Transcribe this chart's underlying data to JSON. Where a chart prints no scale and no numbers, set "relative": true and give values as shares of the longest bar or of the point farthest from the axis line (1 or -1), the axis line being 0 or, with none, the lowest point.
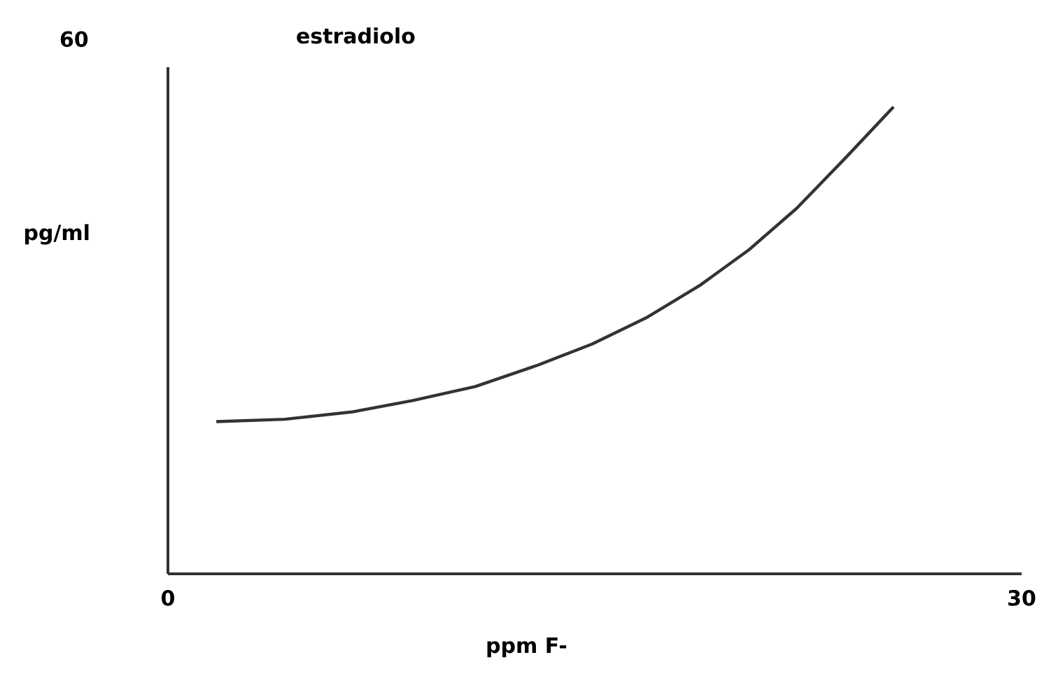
{
  "chart_data": {
    "type": "line",
    "title": "estradiolo",
    "xlabel": "ppm F-",
    "ylabel": "pg/ml",
    "relative": true,
    "annotations": [
      "60"
    ],
    "x": [
      1.7,
      4.1,
      6.5,
      8.6,
      10.8,
      13.0,
      14.9,
      16.8,
      18.7,
      20.4,
      22.1,
      23.8,
      25.5
    ],
    "series": [
      {
        "color": "#333333",
        "values": [
          0.326,
          0.331,
          0.347,
          0.371,
          0.401,
          0.447,
          0.492,
          0.548,
          0.618,
          0.693,
          0.783,
          0.89,
          1.0
        ]
      }
    ],
    "xlim": [
      0,
      30
    ],
    "xticks": [
      0,
      30
    ],
    "grid": false,
    "marker": "none",
    "line_style": "solid"
  }
}
